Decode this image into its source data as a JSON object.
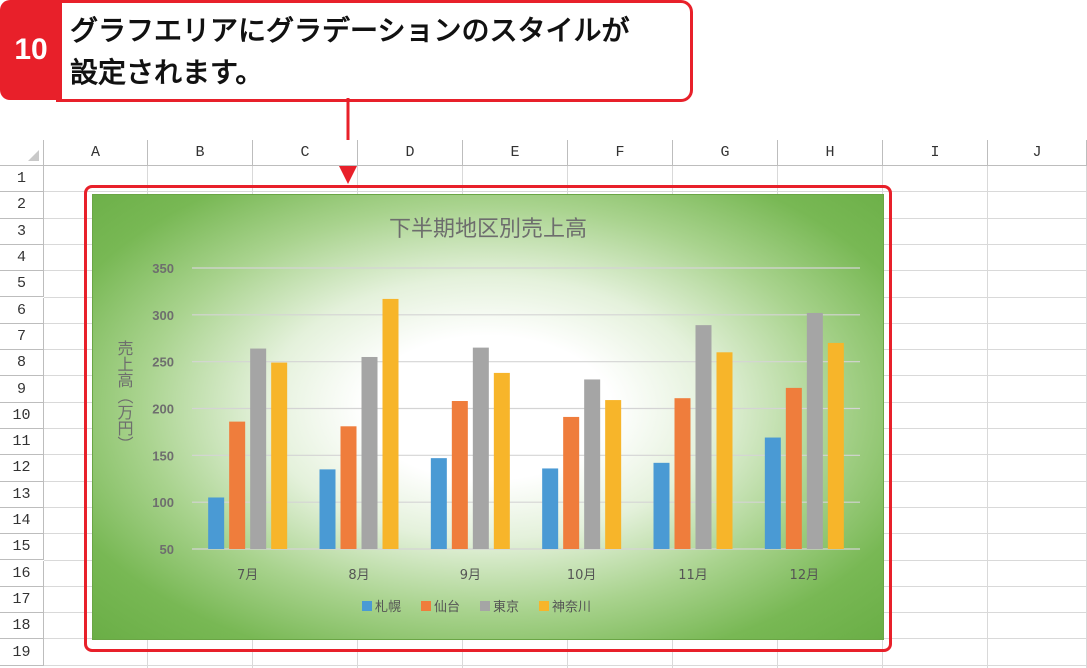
{
  "callout": {
    "step": "10",
    "line1": "グラフエリアにグラデーションのスタイルが",
    "line2": "設定されます。",
    "color": "#e8202a"
  },
  "sheet": {
    "columns": [
      "A",
      "B",
      "C",
      "D",
      "E",
      "F",
      "G",
      "H",
      "I",
      "J"
    ],
    "rows": [
      "1",
      "2",
      "3",
      "4",
      "5",
      "6",
      "7",
      "8",
      "9",
      "10",
      "11",
      "12",
      "13",
      "14",
      "15",
      "16",
      "17",
      "18",
      "19"
    ]
  },
  "chart_data": {
    "type": "bar",
    "title": "下半期地区別売上高",
    "ylabel": "売上高（万円）",
    "xlabel": "",
    "categories": [
      "7月",
      "8月",
      "9月",
      "10月",
      "11月",
      "12月"
    ],
    "ylim": [
      50,
      350
    ],
    "yticks": [
      "50",
      "100",
      "150",
      "200",
      "250",
      "300",
      "350"
    ],
    "grid": true,
    "legend_position": "bottom",
    "series": [
      {
        "name": "札幌",
        "color": "#4a9ad4",
        "values": [
          105,
          135,
          147,
          136,
          142,
          169
        ]
      },
      {
        "name": "仙台",
        "color": "#ef7d3c",
        "values": [
          186,
          181,
          208,
          191,
          211,
          222
        ]
      },
      {
        "name": "東京",
        "color": "#a5a5a5",
        "values": [
          264,
          255,
          265,
          231,
          289,
          302
        ]
      },
      {
        "name": "神奈川",
        "color": "#f7b52a",
        "values": [
          249,
          317,
          238,
          209,
          260,
          270
        ]
      }
    ]
  }
}
